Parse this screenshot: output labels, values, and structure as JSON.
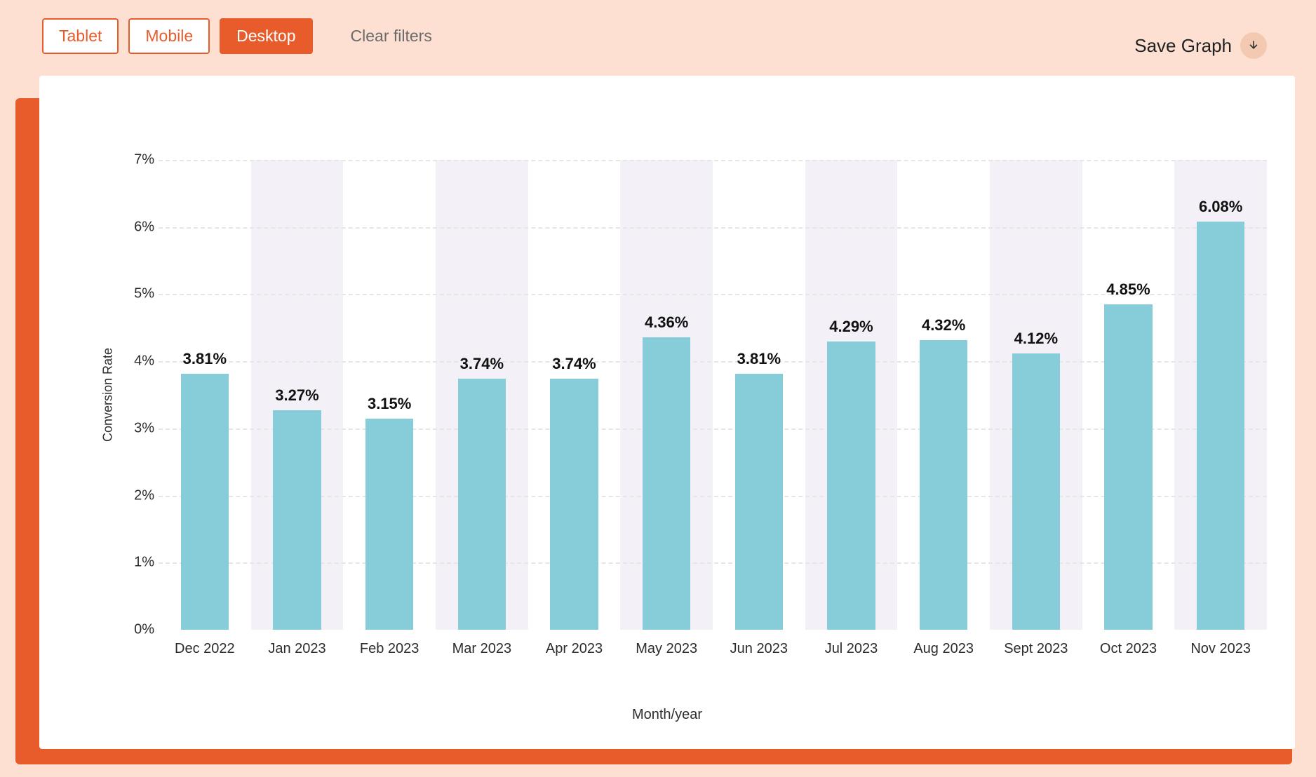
{
  "toolbar": {
    "filters": [
      {
        "label": "Tablet",
        "active": false
      },
      {
        "label": "Mobile",
        "active": false
      },
      {
        "label": "Desktop",
        "active": true
      }
    ],
    "clear_filters_label": "Clear filters",
    "save_graph_label": "Save Graph"
  },
  "chart": {
    "type": "bar",
    "y_axis_title": "Conversion Rate",
    "x_axis_title": "Month/year",
    "ylim": [
      0,
      7
    ],
    "ytick_step": 1,
    "ytick_suffix": "%",
    "grid_color": "#e6e6e6",
    "grid_dash": true,
    "background_color": "#ffffff",
    "alt_band_color": "#f3f1f7",
    "bar_color": "#87cdd9",
    "bar_width_ratio": 0.52,
    "value_label_fontsize": 22,
    "value_label_fontweight": "700",
    "axis_label_fontsize": 20,
    "axis_title_fontsize": 18,
    "categories": [
      "Dec 2022",
      "Jan 2023",
      "Feb 2023",
      "Mar 2023",
      "Apr 2023",
      "May 2023",
      "Jun 2023",
      "Jul 2023",
      "Aug 2023",
      "Sept 2023",
      "Oct 2023",
      "Nov 2023"
    ],
    "values": [
      3.81,
      3.27,
      3.15,
      3.74,
      3.74,
      4.36,
      3.81,
      4.29,
      4.32,
      4.12,
      4.85,
      6.08
    ],
    "value_labels": [
      "3.81%",
      "3.27%",
      "3.15%",
      "3.74%",
      "3.74%",
      "4.36%",
      "3.81%",
      "4.29%",
      "4.32%",
      "4.12%",
      "4.85%",
      "6.08%"
    ],
    "y_ticks": [
      "0%",
      "1%",
      "2%",
      "3%",
      "4%",
      "5%",
      "6%",
      "7%"
    ]
  },
  "colors": {
    "page_bg": "#fde0d2",
    "accent": "#e85c2b",
    "card_bg": "#ffffff",
    "text": "#2c2c2c",
    "muted_text": "#6b6b6b",
    "icon_circle_bg": "#f3c9b2"
  }
}
